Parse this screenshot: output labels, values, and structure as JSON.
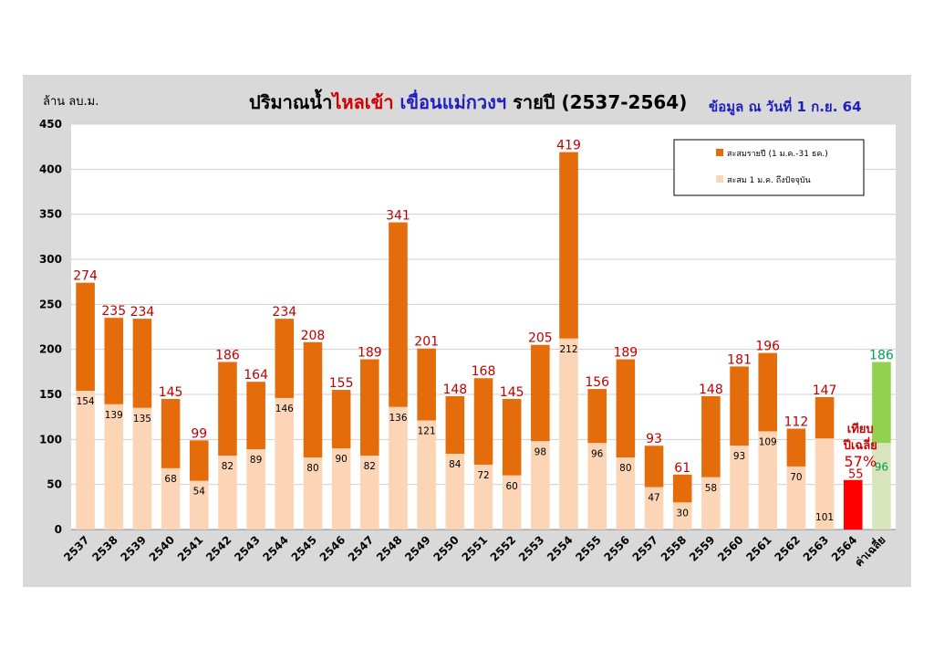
{
  "chart_data": {
    "type": "bar",
    "title_parts": [
      {
        "text": "ปริมาณน้ำ",
        "color": "#000000"
      },
      {
        "text": "ไหลเข้า",
        "color": "#d10000"
      },
      {
        "text": " เขื่อนแม่กวงฯ",
        "color": "#1f1fbf"
      },
      {
        "text": " รายปี  (2537-2564)",
        "color": "#000000"
      }
    ],
    "subtitle": "ข้อมูล ณ วันที่ 1 ก.ย. 64",
    "ylabel": "ล้าน ลบ.ม.",
    "ylim": [
      0,
      450
    ],
    "yticks": [
      0,
      50,
      100,
      150,
      200,
      250,
      300,
      350,
      400,
      450
    ],
    "grid": true,
    "legend_position": "top-right",
    "legend": [
      {
        "label": "สะสมรายปี (1 ม.ค.-31 ธค.)",
        "color": "#e46c0a"
      },
      {
        "label": "สะสม 1 ม.ค. ถึงปัจจุบัน",
        "color": "#fbd5b5"
      }
    ],
    "categories": [
      "2537",
      "2538",
      "2539",
      "2540",
      "2541",
      "2542",
      "2543",
      "2544",
      "2545",
      "2546",
      "2547",
      "2548",
      "2549",
      "2550",
      "2551",
      "2552",
      "2553",
      "2554",
      "2555",
      "2556",
      "2557",
      "2558",
      "2559",
      "2560",
      "2561",
      "2562",
      "2563",
      "2564",
      "ค่าเฉลี่ย"
    ],
    "series": [
      {
        "name": "สะสมรายปี (1 ม.ค.-31 ธค.)",
        "values": [
          274,
          235,
          234,
          145,
          99,
          186,
          164,
          234,
          208,
          155,
          189,
          341,
          201,
          148,
          168,
          145,
          205,
          419,
          156,
          189,
          93,
          61,
          148,
          181,
          196,
          112,
          147,
          null,
          186
        ]
      },
      {
        "name": "สะสม 1 ม.ค. ถึงปัจจุบัน",
        "values": [
          154,
          139,
          135,
          68,
          54,
          82,
          89,
          146,
          80,
          90,
          82,
          136,
          121,
          84,
          72,
          60,
          98,
          212,
          96,
          80,
          47,
          30,
          58,
          93,
          109,
          70,
          101,
          55,
          96
        ]
      }
    ],
    "current_year_color": "#ff0000",
    "average_annual_color": "#92d050",
    "average_partial_color": "#d8e4bc",
    "annotation": {
      "lines": [
        "เทียบ",
        "ปีเฉลี่ย",
        "57%"
      ],
      "color": "#d10000"
    },
    "colors": {
      "annual": "#e46c0a",
      "partial": "#fbd5b5",
      "annual_label": "#c00000",
      "average_label": "#00a050"
    }
  }
}
